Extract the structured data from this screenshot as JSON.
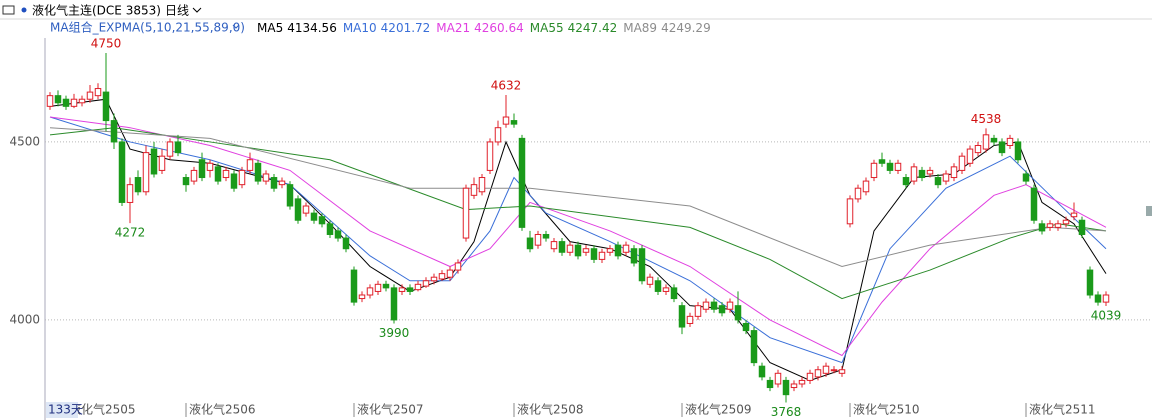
{
  "chart_data": {
    "type": "candlestick",
    "title": "液化气主连(DCE 3853)",
    "period": "日线",
    "indicator": "MA组合_EXPMA(5,10,21,55,89,0)",
    "days_label": "133天",
    "up_color": "#e0202a",
    "down_color": "#1a9a1a",
    "ylim": [
      3775,
      4792
    ],
    "yticks": [
      4000,
      4500
    ],
    "grid": true,
    "xlim": [
      -0.625,
      137.75
    ],
    "xticks": [
      {
        "value": 2,
        "label": "液化气2505"
      },
      {
        "value": 17,
        "label": "液化气2506"
      },
      {
        "value": 38,
        "label": "液化气2507"
      },
      {
        "value": 58,
        "label": "液化气2508"
      },
      {
        "value": 79,
        "label": "液化气2509"
      },
      {
        "value": 100,
        "label": "液化气2510"
      },
      {
        "value": 122,
        "label": "液化气2511"
      }
    ],
    "marked_highs": [
      7,
      57,
      117
    ],
    "marked_lows": [
      10,
      43,
      92,
      132
    ],
    "ohlc": [
      [
        4600,
        4640,
        4590,
        4630
      ],
      [
        4630,
        4645,
        4600,
        4610
      ],
      [
        4620,
        4630,
        4590,
        4600
      ],
      [
        4600,
        4635,
        4595,
        4620
      ],
      [
        4610,
        4630,
        4600,
        4620
      ],
      [
        4620,
        4660,
        4610,
        4640
      ],
      [
        4630,
        4665,
        4620,
        4650
      ],
      [
        4640,
        4750,
        4530,
        4560
      ],
      [
        4560,
        4580,
        4480,
        4500
      ],
      [
        4500,
        4510,
        4320,
        4330
      ],
      [
        4330,
        4400,
        4272,
        4380
      ],
      [
        4400,
        4420,
        4350,
        4360
      ],
      [
        4360,
        4490,
        4350,
        4470
      ],
      [
        4480,
        4500,
        4400,
        4410
      ],
      [
        4420,
        4480,
        4410,
        4460
      ],
      [
        4460,
        4510,
        4450,
        4500
      ],
      [
        4500,
        4520,
        4460,
        4470
      ],
      [
        4400,
        4410,
        4360,
        4380
      ],
      [
        4390,
        4430,
        4380,
        4420
      ],
      [
        4450,
        4470,
        4390,
        4400
      ],
      [
        4420,
        4450,
        4400,
        4440
      ],
      [
        4430,
        4440,
        4380,
        4390
      ],
      [
        4400,
        4430,
        4390,
        4420
      ],
      [
        4410,
        4420,
        4360,
        4370
      ],
      [
        4380,
        4430,
        4370,
        4420
      ],
      [
        4420,
        4470,
        4410,
        4450
      ],
      [
        4440,
        4450,
        4380,
        4390
      ],
      [
        4390,
        4420,
        4380,
        4410
      ],
      [
        4400,
        4410,
        4360,
        4370
      ],
      [
        4380,
        4400,
        4370,
        4390
      ],
      [
        4380,
        4390,
        4310,
        4320
      ],
      [
        4340,
        4350,
        4270,
        4280
      ],
      [
        4300,
        4330,
        4290,
        4320
      ],
      [
        4300,
        4310,
        4270,
        4280
      ],
      [
        4290,
        4300,
        4260,
        4270
      ],
      [
        4270,
        4280,
        4230,
        4240
      ],
      [
        4250,
        4260,
        4220,
        4230
      ],
      [
        4230,
        4240,
        4190,
        4200
      ],
      [
        4140,
        4150,
        4040,
        4050
      ],
      [
        4060,
        4080,
        4050,
        4070
      ],
      [
        4070,
        4100,
        4060,
        4090
      ],
      [
        4080,
        4110,
        4070,
        4100
      ],
      [
        4100,
        4110,
        4080,
        4090
      ],
      [
        4090,
        4100,
        3990,
        4000
      ],
      [
        4080,
        4100,
        4070,
        4090
      ],
      [
        4090,
        4100,
        4070,
        4080
      ],
      [
        4085,
        4110,
        4080,
        4100
      ],
      [
        4095,
        4120,
        4090,
        4110
      ],
      [
        4110,
        4130,
        4100,
        4120
      ],
      [
        4115,
        4140,
        4110,
        4130
      ],
      [
        4120,
        4150,
        4110,
        4140
      ],
      [
        4140,
        4170,
        4130,
        4160
      ],
      [
        4230,
        4380,
        4220,
        4370
      ],
      [
        4350,
        4400,
        4340,
        4380
      ],
      [
        4360,
        4410,
        4350,
        4400
      ],
      [
        4420,
        4510,
        4410,
        4500
      ],
      [
        4500,
        4560,
        4490,
        4540
      ],
      [
        4550,
        4632,
        4540,
        4570
      ],
      [
        4560,
        4580,
        4540,
        4550
      ],
      [
        4510,
        4520,
        4250,
        4260
      ],
      [
        4230,
        4250,
        4190,
        4200
      ],
      [
        4210,
        4250,
        4200,
        4240
      ],
      [
        4240,
        4250,
        4220,
        4230
      ],
      [
        4200,
        4230,
        4190,
        4220
      ],
      [
        4220,
        4230,
        4180,
        4190
      ],
      [
        4190,
        4220,
        4180,
        4210
      ],
      [
        4210,
        4220,
        4170,
        4180
      ],
      [
        4190,
        4210,
        4180,
        4200
      ],
      [
        4200,
        4210,
        4160,
        4170
      ],
      [
        4170,
        4200,
        4160,
        4190
      ],
      [
        4190,
        4210,
        4180,
        4200
      ],
      [
        4210,
        4220,
        4170,
        4180
      ],
      [
        4190,
        4220,
        4180,
        4210
      ],
      [
        4200,
        4210,
        4150,
        4160
      ],
      [
        4200,
        4210,
        4100,
        4110
      ],
      [
        4100,
        4130,
        4090,
        4120
      ],
      [
        4110,
        4120,
        4070,
        4080
      ],
      [
        4080,
        4100,
        4070,
        4090
      ],
      [
        4090,
        4100,
        4050,
        4060
      ],
      [
        4040,
        4050,
        3960,
        3980
      ],
      [
        3990,
        4020,
        3980,
        4010
      ],
      [
        4010,
        4050,
        4000,
        4040
      ],
      [
        4030,
        4060,
        4020,
        4050
      ],
      [
        4050,
        4060,
        4020,
        4030
      ],
      [
        4040,
        4050,
        4010,
        4020
      ],
      [
        4030,
        4060,
        4020,
        4050
      ],
      [
        4040,
        4080,
        3990,
        4000
      ],
      [
        3990,
        4000,
        3960,
        3970
      ],
      [
        3970,
        3980,
        3870,
        3880
      ],
      [
        3870,
        3880,
        3830,
        3840
      ],
      [
        3830,
        3840,
        3800,
        3810
      ],
      [
        3820,
        3860,
        3810,
        3850
      ],
      [
        3830,
        3840,
        3768,
        3790
      ],
      [
        3810,
        3830,
        3800,
        3820
      ],
      [
        3820,
        3840,
        3810,
        3830
      ],
      [
        3830,
        3860,
        3820,
        3850
      ],
      [
        3840,
        3870,
        3830,
        3860
      ],
      [
        3850,
        3880,
        3840,
        3870
      ],
      [
        3860,
        3870,
        3850,
        3860
      ],
      [
        3850,
        3870,
        3840,
        3860
      ],
      [
        4270,
        4350,
        4260,
        4340
      ],
      [
        4340,
        4380,
        4330,
        4370
      ],
      [
        4360,
        4400,
        4350,
        4390
      ],
      [
        4400,
        4450,
        4390,
        4440
      ],
      [
        4450,
        4470,
        4430,
        4440
      ],
      [
        4440,
        4450,
        4410,
        4420
      ],
      [
        4420,
        4450,
        4410,
        4440
      ],
      [
        4400,
        4410,
        4370,
        4380
      ],
      [
        4390,
        4440,
        4380,
        4430
      ],
      [
        4420,
        4430,
        4390,
        4400
      ],
      [
        4410,
        4430,
        4400,
        4420
      ],
      [
        4400,
        4410,
        4370,
        4380
      ],
      [
        4390,
        4420,
        4380,
        4410
      ],
      [
        4400,
        4440,
        4390,
        4430
      ],
      [
        4420,
        4470,
        4410,
        4460
      ],
      [
        4440,
        4490,
        4430,
        4480
      ],
      [
        4470,
        4500,
        4460,
        4490
      ],
      [
        4480,
        4538,
        4470,
        4520
      ],
      [
        4510,
        4520,
        4490,
        4500
      ],
      [
        4500,
        4510,
        4460,
        4470
      ],
      [
        4490,
        4520,
        4480,
        4510
      ],
      [
        4500,
        4510,
        4440,
        4450
      ],
      [
        4410,
        4420,
        4380,
        4390
      ],
      [
        4370,
        4380,
        4270,
        4280
      ],
      [
        4270,
        4280,
        4240,
        4250
      ],
      [
        4260,
        4280,
        4250,
        4270
      ],
      [
        4260,
        4280,
        4250,
        4270
      ],
      [
        4270,
        4290,
        4260,
        4280
      ],
      [
        4290,
        4330,
        4280,
        4300
      ],
      [
        4280,
        4290,
        4230,
        4240
      ],
      [
        4140,
        4150,
        4060,
        4070
      ],
      [
        4070,
        4080,
        4040,
        4050
      ],
      [
        4050,
        4080,
        4039,
        4070
      ]
    ],
    "series": [
      {
        "name": "MA5",
        "last": 4134.56,
        "color": "#000000",
        "x": [
          0,
          7,
          10,
          15,
          20,
          25,
          30,
          35,
          40,
          45,
          50,
          53,
          57,
          60,
          65,
          70,
          75,
          80,
          85,
          90,
          95,
          99,
          103,
          108,
          113,
          118,
          121,
          124,
          128,
          132
        ],
        "values": [
          4600,
          4620,
          4480,
          4450,
          4440,
          4410,
          4380,
          4270,
          4150,
          4080,
          4120,
          4220,
          4500,
          4350,
          4220,
          4200,
          4150,
          4040,
          4030,
          3880,
          3830,
          3860,
          4250,
          4400,
          4410,
          4490,
          4500,
          4330,
          4270,
          4130
        ]
      },
      {
        "name": "MA10",
        "last": 4201.72,
        "color": "#3a6fd8",
        "x": [
          0,
          10,
          20,
          30,
          40,
          45,
          50,
          55,
          58,
          62,
          70,
          80,
          90,
          99,
          105,
          112,
          120,
          125,
          132
        ],
        "values": [
          4570,
          4500,
          4450,
          4380,
          4180,
          4110,
          4110,
          4250,
          4400,
          4300,
          4220,
          4110,
          3950,
          3880,
          4200,
          4370,
          4460,
          4350,
          4200
        ]
      },
      {
        "name": "MA21",
        "last": 4260.64,
        "color": "#e040e0",
        "x": [
          0,
          10,
          20,
          30,
          40,
          50,
          55,
          60,
          70,
          80,
          90,
          99,
          104,
          110,
          118,
          122,
          132
        ],
        "values": [
          4570,
          4540,
          4490,
          4420,
          4250,
          4150,
          4200,
          4330,
          4250,
          4150,
          4000,
          3900,
          4050,
          4200,
          4350,
          4380,
          4260
        ]
      },
      {
        "name": "MA55",
        "last": 4247.42,
        "color": "#2a8a2a",
        "x": [
          0,
          8,
          20,
          35,
          52,
          60,
          80,
          90,
          99,
          110,
          120,
          126,
          132
        ],
        "values": [
          4520,
          4540,
          4500,
          4450,
          4310,
          4320,
          4260,
          4170,
          4060,
          4140,
          4230,
          4270,
          4250
        ]
      },
      {
        "name": "MA89",
        "last": 4249.29,
        "color": "#8c8c8c",
        "x": [
          0,
          20,
          45,
          60,
          80,
          99,
          110,
          125,
          132
        ],
        "values": [
          4540,
          4510,
          4370,
          4370,
          4320,
          4150,
          4210,
          4260,
          4250
        ]
      }
    ]
  }
}
